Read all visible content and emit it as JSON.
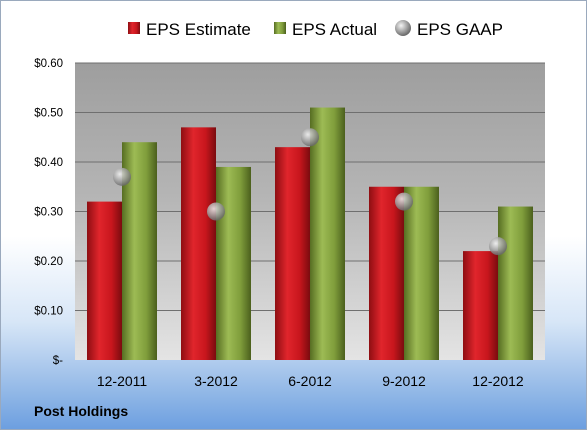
{
  "company": "Post Holdings",
  "chart_data": {
    "type": "bar",
    "categories": [
      "12-2011",
      "3-2012",
      "6-2012",
      "9-2012",
      "12-2012"
    ],
    "series": [
      {
        "name": "EPS Estimate",
        "values": [
          0.32,
          0.47,
          0.43,
          0.35,
          0.22
        ],
        "color": "#c8161d"
      },
      {
        "name": "EPS Actual",
        "values": [
          0.44,
          0.39,
          0.51,
          0.35,
          0.31
        ],
        "color": "#7f9d3b"
      }
    ],
    "markers": {
      "name": "EPS GAAP",
      "values": [
        0.37,
        0.3,
        0.45,
        0.32,
        0.23
      ],
      "color": "#a0a0a0"
    },
    "ylim": [
      0,
      0.6
    ],
    "yticks": [
      0,
      0.1,
      0.2,
      0.3,
      0.4,
      0.5,
      0.6
    ],
    "ytick_labels": [
      "$-",
      "$0.10",
      "$0.20",
      "$0.30",
      "$0.40",
      "$0.50",
      "$0.60"
    ],
    "legend_position": "top",
    "grid": true
  }
}
